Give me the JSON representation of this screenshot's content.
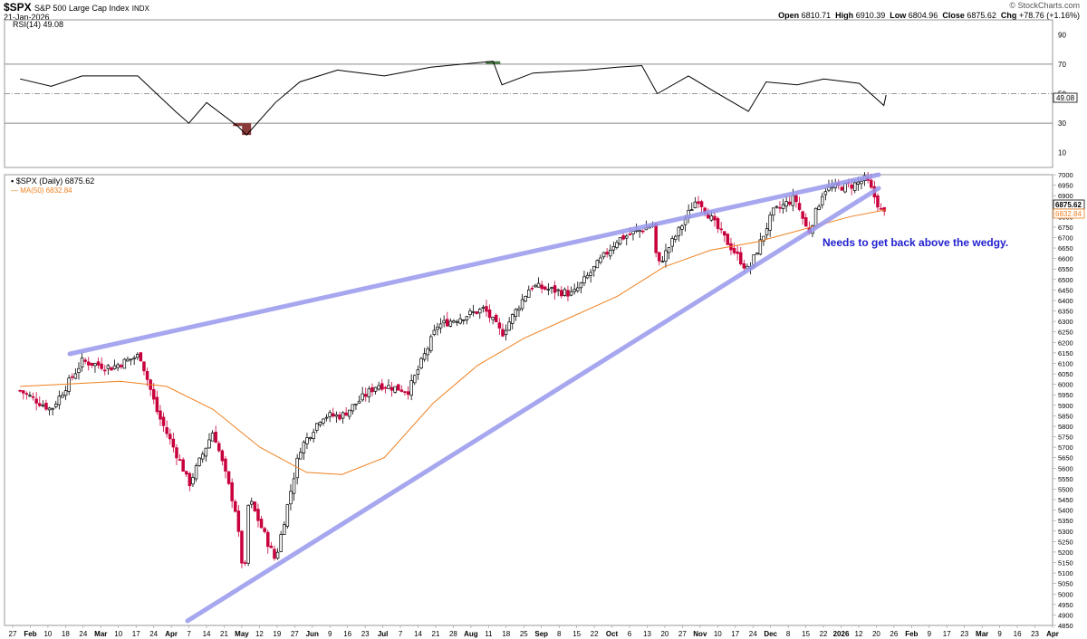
{
  "header": {
    "symbol": "$SPX",
    "name": "S&P 500 Large Cap Index",
    "exchange": "INDX",
    "date": "21-Jan-2026",
    "watermark": "© StockCharts.com",
    "ohlc": {
      "open_label": "Open",
      "open": "6810.71",
      "high_label": "High",
      "high": "6910.39",
      "low_label": "Low",
      "low": "6804.96",
      "close_label": "Close",
      "close": "6875.62",
      "chg_label": "Chg",
      "chg": "+78.76 (+1.16%)"
    }
  },
  "rsi_panel": {
    "label": "RSI(14) 49.08",
    "value_badge": "49.08",
    "ticks": [
      "90",
      "70",
      "50",
      "30",
      "10"
    ]
  },
  "price_panel": {
    "legend_main": "$SPX (Daily) 6875.62",
    "legend_ma": "MA(50) 6832.84",
    "close_badge": "6875.62",
    "ma_badge": "6832.84",
    "annotation": "Needs to get back above the wedgy.",
    "y_ticks": [
      "7000",
      "6950",
      "6900",
      "6850",
      "6800",
      "6750",
      "6700",
      "6650",
      "6600",
      "6550",
      "6500",
      "6450",
      "6400",
      "6350",
      "6300",
      "6250",
      "6200",
      "6150",
      "6100",
      "6050",
      "6000",
      "5950",
      "5900",
      "5850",
      "5800",
      "5750",
      "5700",
      "5650",
      "5600",
      "5550",
      "5500",
      "5450",
      "5400",
      "5350",
      "5300",
      "5250",
      "5200",
      "5150",
      "5100",
      "5050",
      "5000",
      "4950",
      "4900",
      "4850"
    ]
  },
  "x_axis": {
    "labels": [
      "27",
      "Feb",
      "10",
      "18",
      "24",
      "Mar",
      "10",
      "17",
      "24",
      "Apr",
      "7",
      "14",
      "21",
      "May",
      "12",
      "19",
      "27",
      "Jun",
      "9",
      "16",
      "23",
      "Jul",
      "7",
      "14",
      "21",
      "28",
      "Aug",
      "11",
      "18",
      "25",
      "Sep",
      "8",
      "15",
      "22",
      "Oct",
      "6",
      "13",
      "20",
      "27",
      "Nov",
      "10",
      "17",
      "24",
      "Dec",
      "8",
      "15",
      "22",
      "2026",
      "12",
      "20",
      "26",
      "Feb",
      "9",
      "17",
      "23",
      "Mar",
      "9",
      "16",
      "23",
      "Apr"
    ]
  },
  "colors": {
    "up": "#000000",
    "down": "#c8003c",
    "ma": "#f08020",
    "trendline": "#9898ee",
    "annotation": "#2020d0",
    "rsi_overbought_fill": "#4a7a4a",
    "rsi_oversold_fill": "#8b3a3a"
  },
  "chart_data": [
    {
      "type": "line",
      "title": "RSI(14)",
      "ylim": [
        0,
        100
      ],
      "reference_lines": [
        70,
        50,
        30
      ],
      "series": [
        {
          "name": "RSI(14)",
          "x": [
            "2024-12-27",
            "2025-01-10",
            "2025-01-24",
            "2025-02-18",
            "2025-03-07",
            "2025-03-13",
            "2025-03-21",
            "2025-04-04",
            "2025-04-08",
            "2025-04-21",
            "2025-05-02",
            "2025-05-19",
            "2025-06-09",
            "2025-06-30",
            "2025-07-28",
            "2025-08-01",
            "2025-08-15",
            "2025-09-08",
            "2025-09-22",
            "2025-10-03",
            "2025-10-10",
            "2025-10-24",
            "2025-11-04",
            "2025-11-20",
            "2025-11-28",
            "2025-12-12",
            "2025-12-24",
            "2026-01-09",
            "2026-01-20",
            "2026-01-21"
          ],
          "values": [
            60,
            55,
            62,
            62,
            38,
            30,
            44,
            28,
            22,
            44,
            58,
            66,
            62,
            68,
            72,
            56,
            64,
            66,
            68,
            69,
            50,
            62,
            52,
            38,
            58,
            56,
            60,
            57,
            42,
            49.08
          ]
        }
      ]
    },
    {
      "type": "line",
      "title": "$SPX (Daily) 6875.62",
      "ylim": [
        4850,
        7000
      ],
      "series": [
        {
          "name": "$SPX (Daily) 6875.62",
          "x": [
            "2024-12-27",
            "2025-01-10",
            "2025-01-24",
            "2025-02-06",
            "2025-02-19",
            "2025-02-27",
            "2025-03-10",
            "2025-03-13",
            "2025-03-24",
            "2025-04-03",
            "2025-04-07",
            "2025-04-09",
            "2025-04-21",
            "2025-05-02",
            "2025-05-12",
            "2025-05-21",
            "2025-06-06",
            "2025-06-20",
            "2025-07-03",
            "2025-07-24",
            "2025-08-01",
            "2025-08-14",
            "2025-09-02",
            "2025-09-22",
            "2025-10-08",
            "2025-10-10",
            "2025-10-20",
            "2025-10-28",
            "2025-11-07",
            "2025-11-20",
            "2025-12-01",
            "2025-12-11",
            "2025-12-17",
            "2025-12-24",
            "2026-01-06",
            "2026-01-12",
            "2026-01-20",
            "2026-01-21"
          ],
          "values": [
            5970,
            5880,
            6110,
            6080,
            6140,
            5860,
            5610,
            5520,
            5780,
            5400,
            5060,
            5460,
            5160,
            5690,
            5850,
            5850,
            6000,
            5970,
            6280,
            6360,
            6240,
            6470,
            6430,
            6690,
            6760,
            6560,
            6740,
            6890,
            6730,
            6540,
            6820,
            6890,
            6720,
            6930,
            6950,
            6980,
            6800,
            6875.62
          ]
        },
        {
          "name": "MA(50) 6832.84",
          "x": [
            "2024-12-27",
            "2025-01-15",
            "2025-02-10",
            "2025-03-03",
            "2025-03-24",
            "2025-04-14",
            "2025-05-05",
            "2025-05-21",
            "2025-06-09",
            "2025-07-01",
            "2025-07-21",
            "2025-08-11",
            "2025-09-01",
            "2025-09-22",
            "2025-10-13",
            "2025-11-03",
            "2025-11-24",
            "2025-12-15",
            "2026-01-05",
            "2026-01-21"
          ],
          "values": [
            5990,
            6000,
            6015,
            5990,
            5880,
            5700,
            5580,
            5570,
            5650,
            5910,
            6090,
            6220,
            6320,
            6420,
            6560,
            6640,
            6680,
            6740,
            6800,
            6832.84
          ]
        }
      ],
      "annotations": [
        "Needs to get back above the wedgy."
      ]
    }
  ]
}
